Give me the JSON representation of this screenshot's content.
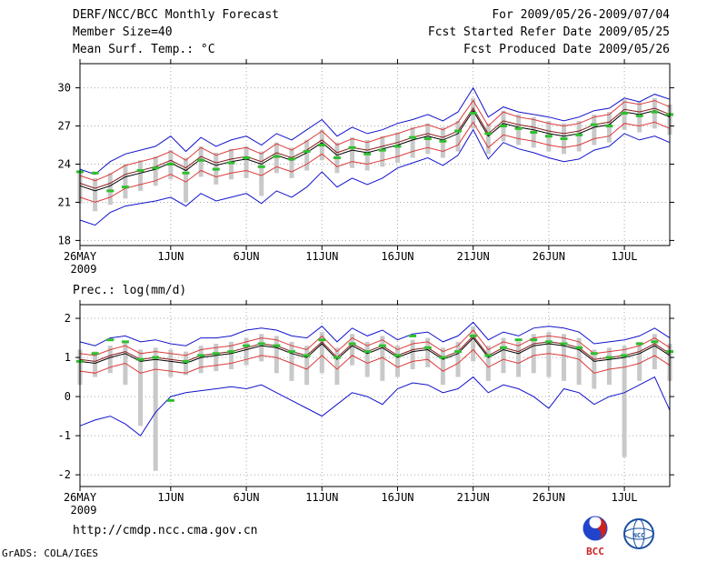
{
  "header": {
    "title": "DERF/NCC/BCC Monthly Forecast",
    "member_size": "Member Size=40",
    "for_range": "For 2009/05/26-2009/07/04",
    "refer_date": "Fcst Started Refer Date 2009/05/25",
    "produced_date": "Fcst Produced Date 2009/05/26"
  },
  "footer": {
    "url": "http://cmdp.ncc.cma.gov.cn",
    "credit": "GrADS: COLA/IGES",
    "logos": [
      {
        "label": "BCC"
      },
      {
        "label": "NCC"
      }
    ]
  },
  "colors": {
    "envelope_blue": "#1212cc",
    "quartile_red": "#dd3b3b",
    "median_maroon": "#8b1a1a",
    "mean_black": "#000000",
    "obs_green": "#2fbf2f",
    "bar_gray": "#c9c9c9"
  },
  "chart_data": [
    {
      "type": "line",
      "title": "Mean Surf. Temp.: °C",
      "xlabel": "",
      "ylabel": "°C",
      "ylim": [
        17.6,
        31.9
      ],
      "yticks": [
        18,
        21,
        24,
        27,
        30
      ],
      "grid": true,
      "legend_position": "none",
      "xticks": [
        {
          "pos": 0,
          "label": "26MAY",
          "sub": "2009"
        },
        {
          "pos": 6,
          "label": "1JUN"
        },
        {
          "pos": 11,
          "label": "6JUN"
        },
        {
          "pos": 16,
          "label": "11JUN"
        },
        {
          "pos": 21,
          "label": "16JUN"
        },
        {
          "pos": 26,
          "label": "21JUN"
        },
        {
          "pos": 31,
          "label": "26JUN"
        },
        {
          "pos": 36,
          "label": "1JUL"
        }
      ],
      "series": [
        {
          "name": "ensemble-max",
          "color": "#1212cc",
          "values": [
            23.6,
            23.2,
            24.2,
            24.8,
            25.1,
            25.4,
            26.2,
            25.0,
            26.1,
            25.4,
            25.9,
            26.2,
            25.5,
            26.4,
            25.9,
            26.7,
            27.5,
            26.2,
            26.9,
            26.4,
            26.7,
            27.2,
            27.5,
            27.9,
            27.4,
            28.1,
            30.0,
            27.7,
            28.5,
            28.1,
            27.9,
            27.7,
            27.4,
            27.7,
            28.2,
            28.4,
            29.2,
            28.9,
            29.5,
            29.1
          ]
        },
        {
          "name": "ensemble-min",
          "color": "#1212cc",
          "values": [
            19.6,
            19.2,
            20.2,
            20.7,
            20.9,
            21.1,
            21.4,
            20.7,
            21.7,
            21.1,
            21.4,
            21.7,
            20.9,
            21.9,
            21.4,
            22.2,
            23.4,
            22.2,
            22.9,
            22.4,
            22.9,
            23.7,
            24.1,
            24.5,
            23.9,
            24.7,
            26.7,
            24.4,
            25.7,
            25.2,
            24.9,
            24.5,
            24.2,
            24.4,
            25.1,
            25.4,
            26.4,
            25.9,
            26.2,
            25.7
          ]
        },
        {
          "name": "upper-quartile",
          "color": "#dd3b3b",
          "values": [
            23.1,
            22.7,
            23.2,
            23.9,
            24.2,
            24.5,
            25.0,
            24.3,
            25.3,
            24.7,
            25.1,
            25.3,
            24.8,
            25.6,
            25.1,
            25.8,
            26.6,
            25.5,
            26.0,
            25.7,
            26.1,
            26.4,
            26.8,
            27.1,
            26.7,
            27.3,
            29.0,
            27.0,
            28.1,
            27.7,
            27.5,
            27.2,
            27.0,
            27.2,
            27.7,
            27.9,
            28.9,
            28.7,
            29.0,
            28.5
          ]
        },
        {
          "name": "lower-quartile",
          "color": "#dd3b3b",
          "values": [
            21.4,
            21.0,
            21.4,
            22.1,
            22.4,
            22.7,
            23.2,
            22.6,
            23.5,
            23.0,
            23.3,
            23.5,
            23.1,
            23.8,
            23.4,
            24.0,
            24.8,
            23.8,
            24.2,
            24.0,
            24.3,
            24.6,
            25.0,
            25.3,
            25.0,
            25.5,
            27.3,
            25.3,
            26.3,
            26.0,
            25.8,
            25.5,
            25.3,
            25.5,
            26.0,
            26.2,
            27.2,
            27.0,
            27.3,
            26.8
          ]
        },
        {
          "name": "ensemble-median",
          "color": "#8b1a1a",
          "values": [
            22.5,
            22.1,
            22.5,
            23.2,
            23.5,
            23.8,
            24.3,
            23.7,
            24.6,
            24.1,
            24.4,
            24.6,
            24.2,
            24.9,
            24.5,
            25.1,
            25.9,
            24.9,
            25.3,
            25.1,
            25.4,
            25.7,
            26.1,
            26.4,
            26.1,
            26.6,
            28.4,
            26.4,
            27.4,
            27.1,
            26.9,
            26.6,
            26.4,
            26.6,
            27.1,
            27.3,
            28.3,
            28.1,
            28.4,
            27.9
          ]
        },
        {
          "name": "ensemble-mean",
          "color": "#000000",
          "values": [
            22.3,
            21.9,
            22.3,
            23.0,
            23.3,
            23.6,
            24.1,
            23.5,
            24.4,
            23.9,
            24.2,
            24.4,
            24.0,
            24.7,
            24.3,
            24.9,
            25.7,
            24.7,
            25.1,
            24.9,
            25.2,
            25.5,
            25.9,
            26.2,
            25.9,
            26.4,
            28.2,
            26.2,
            27.2,
            26.9,
            26.7,
            26.4,
            26.2,
            26.4,
            26.9,
            27.1,
            28.1,
            27.9,
            28.2,
            27.7
          ]
        }
      ],
      "observation": {
        "name": "obs-dashes",
        "color": "#2fbf2f",
        "values": [
          23.4,
          23.3,
          21.9,
          22.2,
          23.5,
          23.7,
          24.0,
          23.3,
          24.3,
          23.6,
          24.1,
          24.5,
          23.8,
          24.6,
          24.4,
          25.0,
          25.5,
          24.5,
          25.3,
          24.8,
          25.1,
          25.4,
          26.1,
          26.0,
          25.8,
          26.6,
          28.0,
          26.4,
          27.0,
          26.8,
          26.5,
          26.2,
          26.0,
          26.3,
          27.1,
          27.0,
          28.0,
          27.8,
          28.1,
          27.9
        ]
      },
      "bars": {
        "name": "ensemble-spread",
        "color": "#c9c9c9",
        "low": [
          20.9,
          20.3,
          20.8,
          21.3,
          21.9,
          22.3,
          22.8,
          21.0,
          23.0,
          22.4,
          22.8,
          22.9,
          21.5,
          23.3,
          22.9,
          23.5,
          24.3,
          23.3,
          23.7,
          23.5,
          23.8,
          24.1,
          24.5,
          24.8,
          24.5,
          25.0,
          26.8,
          24.8,
          25.8,
          25.5,
          25.3,
          25.0,
          24.8,
          25.0,
          25.5,
          25.7,
          26.7,
          26.5,
          26.8,
          26.3
        ],
        "high": [
          23.3,
          22.9,
          23.3,
          24.0,
          24.3,
          24.6,
          25.1,
          24.5,
          25.4,
          24.9,
          25.2,
          25.4,
          25.0,
          25.7,
          25.3,
          25.9,
          26.7,
          25.7,
          26.1,
          25.9,
          26.2,
          26.5,
          26.9,
          27.2,
          26.9,
          27.4,
          29.2,
          27.2,
          28.2,
          27.9,
          27.7,
          27.4,
          27.2,
          27.4,
          27.9,
          28.1,
          29.1,
          28.9,
          29.2,
          28.7
        ]
      }
    },
    {
      "type": "line",
      "title": "Prec.: log(mm/d)",
      "xlabel": "",
      "ylabel": "log(mm/d)",
      "ylim": [
        -2.3,
        2.35
      ],
      "yticks": [
        -2,
        -1,
        0,
        1,
        2
      ],
      "grid": true,
      "legend_position": "none",
      "xticks": [
        {
          "pos": 0,
          "label": "26MAY",
          "sub": "2009"
        },
        {
          "pos": 6,
          "label": "1JUN"
        },
        {
          "pos": 11,
          "label": "6JUN"
        },
        {
          "pos": 16,
          "label": "11JUN"
        },
        {
          "pos": 21,
          "label": "16JUN"
        },
        {
          "pos": 26,
          "label": "21JUN"
        },
        {
          "pos": 31,
          "label": "26JUN"
        },
        {
          "pos": 36,
          "label": "1JUL"
        }
      ],
      "series": [
        {
          "name": "ensemble-max",
          "color": "#1212cc",
          "values": [
            1.4,
            1.3,
            1.5,
            1.55,
            1.4,
            1.45,
            1.35,
            1.3,
            1.5,
            1.5,
            1.55,
            1.7,
            1.75,
            1.7,
            1.55,
            1.5,
            1.8,
            1.4,
            1.75,
            1.55,
            1.7,
            1.45,
            1.6,
            1.65,
            1.4,
            1.55,
            1.9,
            1.45,
            1.65,
            1.55,
            1.75,
            1.8,
            1.75,
            1.65,
            1.35,
            1.4,
            1.45,
            1.55,
            1.75,
            1.5
          ]
        },
        {
          "name": "ensemble-min",
          "color": "#1212cc",
          "values": [
            -0.75,
            -0.6,
            -0.5,
            -0.7,
            -1.0,
            -0.4,
            0.0,
            0.1,
            0.15,
            0.2,
            0.25,
            0.2,
            0.3,
            0.1,
            -0.1,
            -0.3,
            -0.5,
            -0.2,
            0.1,
            0.0,
            -0.2,
            0.2,
            0.35,
            0.3,
            0.1,
            0.2,
            0.5,
            0.1,
            0.3,
            0.2,
            0.0,
            -0.3,
            0.2,
            0.1,
            -0.2,
            0.0,
            0.1,
            0.3,
            0.5,
            -0.35
          ]
        },
        {
          "name": "upper-quartile",
          "color": "#dd3b3b",
          "values": [
            1.1,
            1.05,
            1.2,
            1.3,
            1.1,
            1.15,
            1.1,
            1.05,
            1.2,
            1.25,
            1.3,
            1.4,
            1.5,
            1.45,
            1.3,
            1.2,
            1.55,
            1.15,
            1.5,
            1.3,
            1.45,
            1.2,
            1.35,
            1.4,
            1.15,
            1.3,
            1.7,
            1.2,
            1.4,
            1.3,
            1.5,
            1.55,
            1.5,
            1.4,
            1.1,
            1.15,
            1.2,
            1.3,
            1.5,
            1.25
          ]
        },
        {
          "name": "lower-quartile",
          "color": "#dd3b3b",
          "values": [
            0.65,
            0.6,
            0.75,
            0.85,
            0.6,
            0.7,
            0.65,
            0.6,
            0.75,
            0.8,
            0.85,
            0.95,
            1.05,
            1.0,
            0.85,
            0.7,
            1.05,
            0.7,
            1.05,
            0.85,
            1.0,
            0.75,
            0.9,
            0.95,
            0.65,
            0.85,
            1.2,
            0.75,
            0.95,
            0.85,
            1.05,
            1.1,
            1.05,
            0.95,
            0.6,
            0.7,
            0.75,
            0.85,
            1.05,
            0.8
          ]
        },
        {
          "name": "ensemble-median",
          "color": "#8b1a1a",
          "values": [
            0.95,
            0.9,
            1.05,
            1.15,
            0.95,
            1.0,
            0.95,
            0.9,
            1.05,
            1.1,
            1.15,
            1.25,
            1.35,
            1.3,
            1.15,
            1.05,
            1.4,
            1.0,
            1.35,
            1.15,
            1.3,
            1.05,
            1.2,
            1.25,
            1.0,
            1.15,
            1.55,
            1.05,
            1.25,
            1.15,
            1.35,
            1.4,
            1.35,
            1.25,
            0.95,
            1.0,
            1.05,
            1.15,
            1.35,
            1.1
          ]
        },
        {
          "name": "ensemble-mean",
          "color": "#000000",
          "values": [
            0.9,
            0.85,
            1.0,
            1.1,
            0.9,
            0.95,
            0.9,
            0.85,
            1.0,
            1.05,
            1.1,
            1.2,
            1.3,
            1.25,
            1.1,
            1.0,
            1.35,
            0.95,
            1.3,
            1.1,
            1.25,
            1.0,
            1.15,
            1.2,
            0.95,
            1.1,
            1.5,
            1.0,
            1.2,
            1.1,
            1.3,
            1.35,
            1.3,
            1.2,
            0.9,
            0.95,
            1.0,
            1.1,
            1.3,
            1.05
          ]
        }
      ],
      "observation": {
        "name": "obs-dashes",
        "color": "#2fbf2f",
        "values": [
          0.9,
          1.1,
          1.45,
          1.4,
          0.95,
          1.0,
          -0.1,
          0.9,
          1.05,
          1.1,
          1.15,
          1.3,
          1.35,
          1.3,
          1.15,
          1.05,
          1.45,
          1.0,
          1.35,
          1.15,
          1.3,
          1.05,
          1.55,
          1.25,
          1.0,
          1.15,
          1.55,
          1.05,
          1.25,
          1.45,
          1.45,
          1.4,
          1.35,
          1.25,
          1.1,
          1.0,
          1.05,
          1.35,
          1.4,
          1.15
        ]
      },
      "bars": {
        "name": "ensemble-spread",
        "color": "#c9c9c9",
        "low": [
          0.3,
          0.5,
          0.6,
          0.3,
          -0.75,
          -1.9,
          0.5,
          0.55,
          0.6,
          0.65,
          0.7,
          0.8,
          0.9,
          0.6,
          0.4,
          0.3,
          0.6,
          0.3,
          0.8,
          0.5,
          0.4,
          0.5,
          0.7,
          0.75,
          0.3,
          0.5,
          0.9,
          0.4,
          0.6,
          0.5,
          0.6,
          0.5,
          0.4,
          0.3,
          0.2,
          0.3,
          -1.55,
          0.4,
          0.7,
          0.4
        ],
        "high": [
          1.2,
          1.15,
          1.3,
          1.4,
          1.2,
          1.25,
          1.2,
          1.15,
          1.3,
          1.35,
          1.4,
          1.5,
          1.6,
          1.55,
          1.4,
          1.3,
          1.65,
          1.25,
          1.6,
          1.4,
          1.55,
          1.3,
          1.45,
          1.5,
          1.25,
          1.4,
          1.8,
          1.3,
          1.5,
          1.4,
          1.6,
          1.65,
          1.6,
          1.5,
          1.2,
          1.25,
          1.3,
          1.4,
          1.6,
          1.35
        ]
      }
    }
  ]
}
